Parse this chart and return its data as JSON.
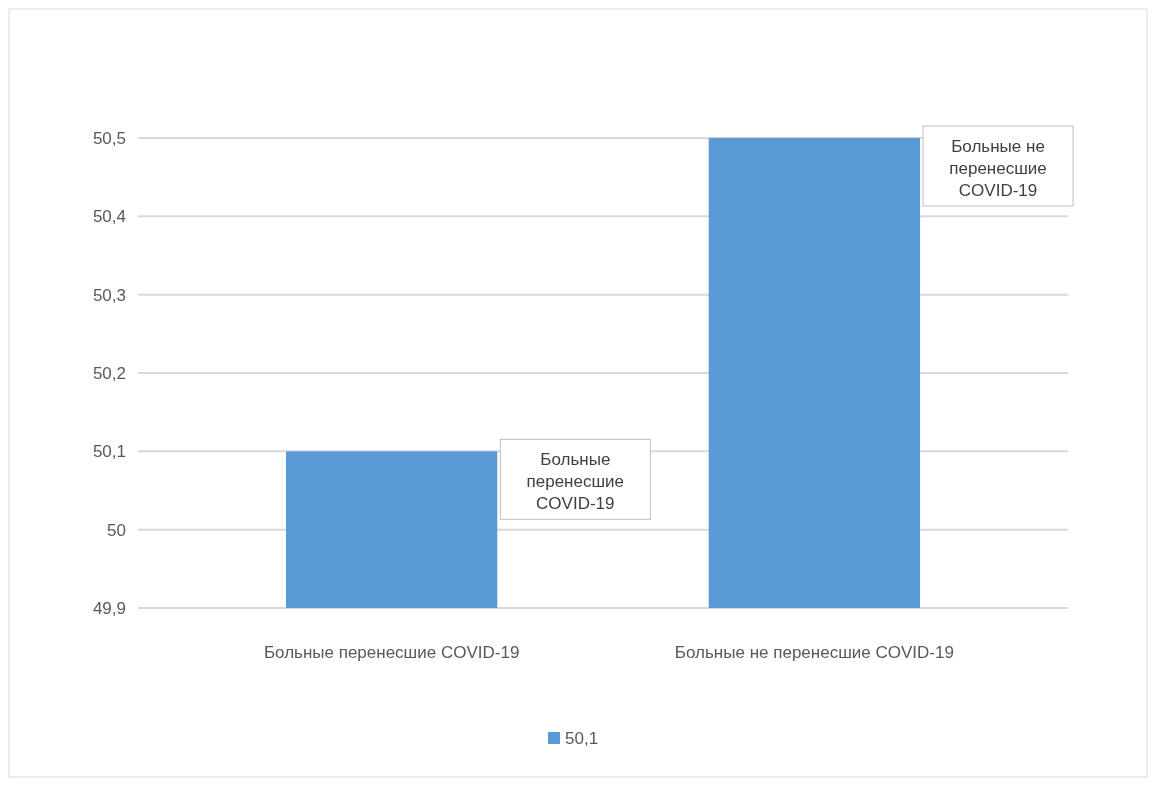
{
  "chart_data": {
    "type": "bar",
    "categories": [
      "Больные перенесшие COVID-19",
      "Больные не перенесшие COVID-19"
    ],
    "series": [
      {
        "name": "50,1",
        "color": "#5b9bd5",
        "values": [
          50.1,
          50.5
        ]
      }
    ],
    "ylim": [
      49.9,
      50.5
    ],
    "yticks": [
      {
        "value": 49.9,
        "label": "49,9"
      },
      {
        "value": 50,
        "label": "50"
      },
      {
        "value": 50.1,
        "label": "50,1"
      },
      {
        "value": 50.2,
        "label": "50,2"
      },
      {
        "value": 50.3,
        "label": "50,3"
      },
      {
        "value": 50.4,
        "label": "50,4"
      },
      {
        "value": 50.5,
        "label": "50,5"
      }
    ],
    "grid": "y",
    "legend": "bottom",
    "annotations": [
      "Больные перенесшие COVID-19",
      "Больные не перенесшие COVID-19"
    ]
  }
}
